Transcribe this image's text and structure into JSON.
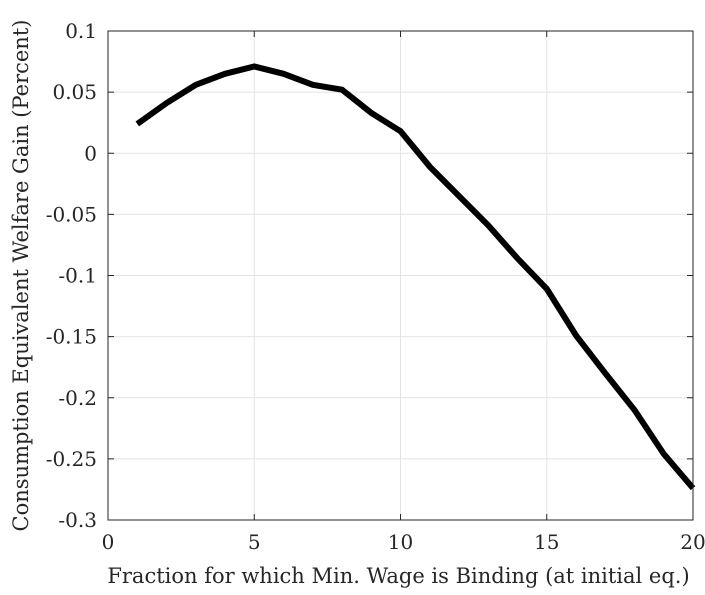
{
  "chart_data": {
    "type": "line",
    "title": "",
    "xlabel": "Fraction for which Min. Wage is Binding (at initial eq.)",
    "ylabel": "Consumption Equivalent Welfare Gain (Percent)",
    "xlim": [
      0,
      20
    ],
    "ylim": [
      -0.3,
      0.1
    ],
    "xticks": [
      0,
      5,
      10,
      15,
      20
    ],
    "xtick_labels": [
      "0",
      "5",
      "10",
      "15",
      "20"
    ],
    "yticks": [
      0.1,
      0.05,
      0,
      -0.05,
      -0.1,
      -0.15,
      -0.2,
      -0.25,
      -0.3
    ],
    "ytick_labels": [
      "0.1",
      "0.05",
      "0",
      "-0.05",
      "-0.1",
      "-0.15",
      "-0.2",
      "-0.25",
      "-0.3"
    ],
    "grid": true,
    "series": [
      {
        "color": "#000000",
        "x": [
          1,
          2,
          3,
          4,
          5,
          6,
          7,
          8,
          9,
          10,
          11,
          12,
          13,
          14,
          15,
          16,
          17,
          18,
          19,
          20
        ],
        "values": [
          0.024,
          0.041,
          0.056,
          0.065,
          0.071,
          0.065,
          0.056,
          0.052,
          0.033,
          0.018,
          -0.011,
          -0.035,
          -0.059,
          -0.086,
          -0.111,
          -0.149,
          -0.18,
          -0.21,
          -0.246,
          -0.274
        ]
      }
    ]
  }
}
